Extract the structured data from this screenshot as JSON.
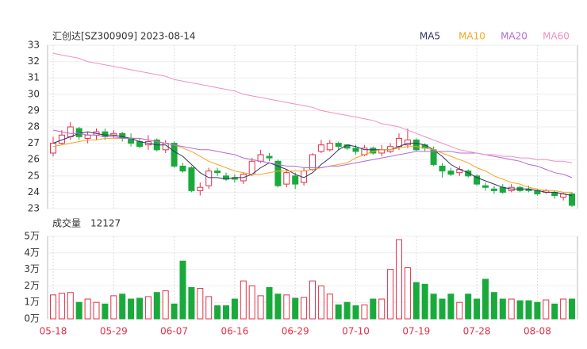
{
  "chart_data": {
    "type": "candlestick",
    "title": "汇创达[SZ300909] 2023-08-14",
    "categories": [
      "05-18",
      null,
      null,
      null,
      null,
      null,
      null,
      "05-29",
      null,
      null,
      null,
      null,
      null,
      null,
      "06-07",
      null,
      null,
      null,
      null,
      null,
      null,
      "06-16",
      null,
      null,
      null,
      null,
      null,
      null,
      "06-29",
      null,
      null,
      null,
      null,
      null,
      null,
      "07-10",
      null,
      null,
      null,
      null,
      null,
      null,
      "07-19",
      null,
      null,
      null,
      null,
      null,
      null,
      "07-28",
      null,
      null,
      null,
      null,
      null,
      null,
      "08-08",
      null,
      null,
      null,
      null
    ],
    "open": [
      26.4,
      27.0,
      27.4,
      27.9,
      27.3,
      27.5,
      27.7,
      27.5,
      27.6,
      27.3,
      27.1,
      26.9,
      27.2,
      26.6,
      27.0,
      25.6,
      25.5,
      24.1,
      24.4,
      25.3,
      25.0,
      24.9,
      24.7,
      25.1,
      25.9,
      26.2,
      25.9,
      24.5,
      25.0,
      24.6,
      25.4,
      26.5,
      26.6,
      27.0,
      26.9,
      26.7,
      26.3,
      26.7,
      26.4,
      26.5,
      26.8,
      26.9,
      27.2,
      26.9,
      26.6,
      25.6,
      25.3,
      25.2,
      25.3,
      25.0,
      24.4,
      24.2,
      24.3,
      24.1,
      24.3,
      24.2,
      24.1,
      24.0,
      24.0,
      23.7,
      23.9
    ],
    "high": [
      27.4,
      27.8,
      28.3,
      28.0,
      27.7,
      27.9,
      27.9,
      27.8,
      27.7,
      27.6,
      27.3,
      27.5,
      27.3,
      27.2,
      27.1,
      25.8,
      25.6,
      24.6,
      25.5,
      25.5,
      25.2,
      25.1,
      25.2,
      26.1,
      26.6,
      26.4,
      26.0,
      25.4,
      25.2,
      25.5,
      26.4,
      27.2,
      27.2,
      27.1,
      26.9,
      26.9,
      26.9,
      26.8,
      26.9,
      27.0,
      27.6,
      27.9,
      27.3,
      27.0,
      26.8,
      25.8,
      25.5,
      25.6,
      25.4,
      25.1,
      24.6,
      24.4,
      24.5,
      24.5,
      24.4,
      24.4,
      24.2,
      24.2,
      24.1,
      24.0,
      24.0
    ],
    "low": [
      26.2,
      26.9,
      27.2,
      27.2,
      27.0,
      27.2,
      27.2,
      27.3,
      27.1,
      26.8,
      26.7,
      26.6,
      26.5,
      26.4,
      25.5,
      25.2,
      24.0,
      23.8,
      24.2,
      25.0,
      24.7,
      24.6,
      24.5,
      25.0,
      25.8,
      25.9,
      24.3,
      24.3,
      24.2,
      24.4,
      25.3,
      26.4,
      26.5,
      26.6,
      26.6,
      26.3,
      26.2,
      26.3,
      26.2,
      26.4,
      26.6,
      26.7,
      26.5,
      26.5,
      25.6,
      24.9,
      25.0,
      25.0,
      24.9,
      24.4,
      24.1,
      23.9,
      23.9,
      24.0,
      24.0,
      24.0,
      23.8,
      23.9,
      23.6,
      23.5,
      23.1
    ],
    "close": [
      27.0,
      27.5,
      28.0,
      27.4,
      27.5,
      27.7,
      27.4,
      27.6,
      27.3,
      27.0,
      26.8,
      27.1,
      26.6,
      27.0,
      25.6,
      25.3,
      24.1,
      24.3,
      25.3,
      25.2,
      24.8,
      24.8,
      25.1,
      25.9,
      26.3,
      26.1,
      24.4,
      25.2,
      24.5,
      25.3,
      26.3,
      26.9,
      27.0,
      26.8,
      26.7,
      26.5,
      26.7,
      26.4,
      26.6,
      26.8,
      27.3,
      27.2,
      26.6,
      26.7,
      25.7,
      25.3,
      25.1,
      25.4,
      25.0,
      24.5,
      24.3,
      24.1,
      24.0,
      24.3,
      24.1,
      24.1,
      23.9,
      24.1,
      23.8,
      23.9,
      23.2
    ],
    "series": [
      {
        "name": "MA5",
        "color": "#333366",
        "values": [
          27.0,
          27.2,
          27.4,
          27.6,
          27.7,
          27.6,
          27.5,
          27.5,
          27.4,
          27.3,
          27.1,
          27.0,
          26.9,
          26.9,
          26.5,
          26.2,
          25.7,
          25.2,
          24.9,
          24.9,
          24.8,
          24.9,
          24.9,
          25.1,
          25.5,
          25.8,
          25.6,
          25.4,
          25.1,
          24.9,
          25.2,
          25.7,
          26.1,
          26.6,
          26.9,
          26.8,
          26.6,
          26.6,
          26.6,
          26.6,
          26.8,
          27.0,
          27.0,
          26.9,
          26.6,
          26.2,
          25.7,
          25.4,
          25.2,
          24.9,
          24.7,
          24.5,
          24.3,
          24.2,
          24.2,
          24.2,
          24.1,
          24.0,
          24.0,
          23.9,
          23.8
        ]
      },
      {
        "name": "MA10",
        "color": "#f5a623",
        "values": [
          26.8,
          26.9,
          27.0,
          27.1,
          27.2,
          27.2,
          27.3,
          27.3,
          27.3,
          27.3,
          27.3,
          27.2,
          27.1,
          27.0,
          26.9,
          26.7,
          26.5,
          26.2,
          25.9,
          25.7,
          25.5,
          25.3,
          25.2,
          25.1,
          25.1,
          25.2,
          25.3,
          25.3,
          25.3,
          25.3,
          25.4,
          25.5,
          25.6,
          25.7,
          25.8,
          26.1,
          26.3,
          26.5,
          26.6,
          26.6,
          26.7,
          26.8,
          26.8,
          26.7,
          26.6,
          26.4,
          26.2,
          26.0,
          25.8,
          25.5,
          25.3,
          25.0,
          24.8,
          24.6,
          24.5,
          24.3,
          24.2,
          24.1,
          24.1,
          24.0,
          24.0
        ]
      },
      {
        "name": "MA20",
        "color": "#b36ad8",
        "values": [
          27.8,
          27.7,
          27.6,
          27.6,
          27.5,
          27.5,
          27.4,
          27.4,
          27.3,
          27.3,
          27.3,
          27.2,
          27.1,
          27.0,
          26.9,
          26.8,
          26.7,
          26.6,
          26.6,
          26.5,
          26.4,
          26.3,
          26.1,
          26.0,
          25.9,
          25.8,
          25.7,
          25.6,
          25.6,
          25.5,
          25.5,
          25.5,
          25.6,
          25.6,
          25.7,
          25.8,
          25.9,
          26.0,
          26.1,
          26.2,
          26.3,
          26.4,
          26.5,
          26.5,
          26.5,
          26.5,
          26.5,
          26.4,
          26.4,
          26.4,
          26.3,
          26.2,
          26.1,
          26.0,
          25.9,
          25.7,
          25.6,
          25.4,
          25.2,
          25.1,
          24.9
        ]
      },
      {
        "name": "MA60",
        "color": "#f08fc0",
        "values": [
          32.5,
          32.4,
          32.3,
          32.2,
          32.0,
          31.9,
          31.8,
          31.7,
          31.6,
          31.5,
          31.4,
          31.3,
          31.2,
          31.1,
          30.9,
          30.8,
          30.7,
          30.6,
          30.5,
          30.4,
          30.3,
          30.2,
          30.0,
          29.9,
          29.8,
          29.7,
          29.6,
          29.5,
          29.4,
          29.3,
          29.2,
          29.0,
          28.9,
          28.8,
          28.7,
          28.6,
          28.5,
          28.4,
          28.2,
          28.1,
          28.0,
          27.8,
          27.6,
          27.4,
          27.2,
          27.0,
          26.8,
          26.6,
          26.5,
          26.4,
          26.3,
          26.3,
          26.2,
          26.2,
          26.1,
          26.1,
          26.0,
          26.0,
          25.9,
          25.9,
          25.8
        ]
      }
    ],
    "ylim": [
      23,
      33
    ],
    "yticks": [
      23,
      24,
      25,
      26,
      27,
      28,
      29,
      30,
      31,
      32,
      33
    ],
    "up_color": "#e0324a",
    "down_color": "#1aaa3c",
    "volume": {
      "label": "成交量",
      "current": 12127,
      "values": [
        1.45,
        1.55,
        1.6,
        1.0,
        1.2,
        1.0,
        0.9,
        1.4,
        1.5,
        1.2,
        1.25,
        1.35,
        1.6,
        1.7,
        0.9,
        3.5,
        1.9,
        1.85,
        1.35,
        0.8,
        0.8,
        1.2,
        2.3,
        2.0,
        1.4,
        1.9,
        1.5,
        1.45,
        1.25,
        1.3,
        2.3,
        2.0,
        1.5,
        0.85,
        1.0,
        0.8,
        0.85,
        1.2,
        1.2,
        3.0,
        4.8,
        3.1,
        2.2,
        2.1,
        1.5,
        1.2,
        1.5,
        1.0,
        1.5,
        1.2,
        2.4,
        1.6,
        1.2,
        1.2,
        1.1,
        1.1,
        1.0,
        1.15,
        0.9,
        1.2,
        1.2
      ],
      "ylim": [
        0,
        5
      ],
      "yticks": [
        {
          "value": 0,
          "label": "0万"
        },
        {
          "value": 1,
          "label": "1万"
        },
        {
          "value": 2,
          "label": "2万"
        },
        {
          "value": 3,
          "label": "3万"
        },
        {
          "value": 4,
          "label": "4万"
        },
        {
          "value": 5,
          "label": "5万"
        }
      ]
    }
  }
}
